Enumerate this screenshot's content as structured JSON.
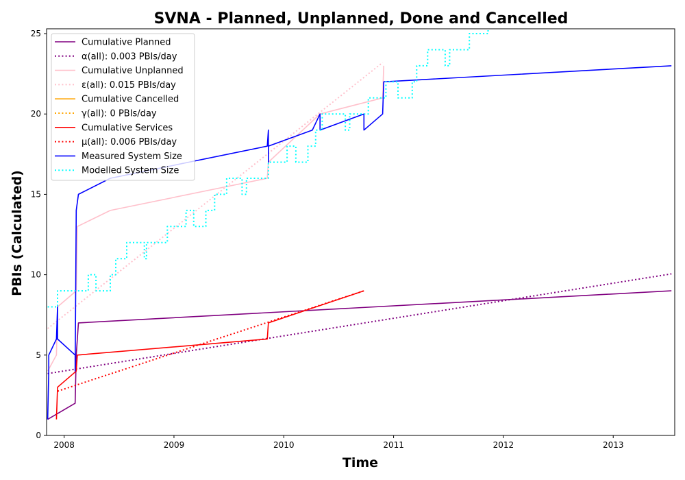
{
  "chart_data": {
    "type": "line",
    "title": "SVNA - Planned, Unplanned, Done  and Cancelled",
    "xlabel": "Time",
    "ylabel": "PBIs (Calculated)",
    "xlim": [
      2007.84,
      2013.56
    ],
    "ylim": [
      0,
      25.3
    ],
    "x_ticks": [
      2008,
      2009,
      2010,
      2011,
      2012,
      2013
    ],
    "y_ticks": [
      0,
      5,
      10,
      15,
      20,
      25
    ],
    "legend_position": "top-left",
    "series": [
      {
        "name": "Cumulative Planned",
        "color": "#800080",
        "style": "solid",
        "points": [
          [
            2007.85,
            1
          ],
          [
            2008.1,
            2
          ],
          [
            2008.11,
            5
          ],
          [
            2008.12,
            6
          ],
          [
            2008.13,
            7
          ],
          [
            2013.53,
            9
          ]
        ]
      },
      {
        "name": "α(all): 0.003 PBIs/day",
        "color": "#800080",
        "style": "dotted",
        "points": [
          [
            2007.85,
            3.85
          ],
          [
            2013.53,
            10.05
          ]
        ]
      },
      {
        "name": "Cumulative Unplanned",
        "color": "#ffc0cb",
        "style": "solid",
        "points": [
          [
            2007.85,
            4
          ],
          [
            2007.93,
            5
          ],
          [
            2007.94,
            8
          ],
          [
            2008.11,
            9
          ],
          [
            2008.12,
            13
          ],
          [
            2008.42,
            14
          ],
          [
            2009.85,
            16
          ],
          [
            2009.86,
            17
          ],
          [
            2010.33,
            20
          ],
          [
            2010.9,
            21
          ],
          [
            2010.91,
            23
          ]
        ]
      },
      {
        "name": "ε(all): 0.015 PBIs/day",
        "color": "#ffc0cb",
        "style": "dotted",
        "points": [
          [
            2007.85,
            6.65
          ],
          [
            2010.9,
            23.2
          ]
        ]
      },
      {
        "name": "Cumulative Cancelled",
        "color": "#ffa500",
        "style": "solid",
        "points": []
      },
      {
        "name": "γ(all): 0 PBIs/day",
        "color": "#ffa500",
        "style": "dotted",
        "points": []
      },
      {
        "name": "Cumulative Services",
        "color": "#ff0000",
        "style": "solid",
        "points": [
          [
            2007.93,
            1
          ],
          [
            2007.94,
            3
          ],
          [
            2008.11,
            4
          ],
          [
            2008.12,
            5
          ],
          [
            2009.85,
            6
          ],
          [
            2009.86,
            7
          ],
          [
            2010.73,
            9
          ]
        ]
      },
      {
        "name": "μ(all): 0.006 PBIs/day",
        "color": "#ff0000",
        "style": "dotted",
        "points": [
          [
            2007.94,
            2.75
          ],
          [
            2010.73,
            9
          ]
        ]
      },
      {
        "name": "Measured System Size",
        "color": "#0000ff",
        "style": "solid",
        "points": [
          [
            2007.85,
            1
          ],
          [
            2007.86,
            4
          ],
          [
            2007.86,
            5
          ],
          [
            2007.93,
            6
          ],
          [
            2007.94,
            8
          ],
          [
            2007.94,
            6
          ],
          [
            2008.1,
            5
          ],
          [
            2008.1,
            4
          ],
          [
            2008.11,
            14
          ],
          [
            2008.13,
            15
          ],
          [
            2008.42,
            16
          ],
          [
            2009.85,
            18
          ],
          [
            2009.86,
            19
          ],
          [
            2009.86,
            17
          ],
          [
            2009.86,
            18
          ],
          [
            2010.26,
            19
          ],
          [
            2010.33,
            20
          ],
          [
            2010.33,
            19
          ],
          [
            2010.73,
            20
          ],
          [
            2010.73,
            19
          ],
          [
            2010.9,
            20
          ],
          [
            2010.91,
            22
          ],
          [
            2013.53,
            23
          ]
        ]
      },
      {
        "name": "Modelled System Size",
        "color": "#00ffff",
        "style": "dotted",
        "step": true,
        "points": [
          [
            2007.85,
            8
          ],
          [
            2007.94,
            9
          ],
          [
            2008.04,
            9
          ],
          [
            2008.09,
            9
          ],
          [
            2008.22,
            10
          ],
          [
            2008.29,
            9
          ],
          [
            2008.42,
            10
          ],
          [
            2008.47,
            11
          ],
          [
            2008.57,
            12
          ],
          [
            2008.73,
            11
          ],
          [
            2008.75,
            12
          ],
          [
            2008.94,
            13
          ],
          [
            2009.11,
            14
          ],
          [
            2009.18,
            13
          ],
          [
            2009.29,
            14
          ],
          [
            2009.37,
            15
          ],
          [
            2009.48,
            16
          ],
          [
            2009.62,
            15
          ],
          [
            2009.66,
            16
          ],
          [
            2009.86,
            17
          ],
          [
            2010.03,
            18
          ],
          [
            2010.11,
            17
          ],
          [
            2010.22,
            18
          ],
          [
            2010.29,
            19
          ],
          [
            2010.35,
            20
          ],
          [
            2010.56,
            19
          ],
          [
            2010.6,
            20
          ],
          [
            2010.77,
            21
          ],
          [
            2010.93,
            22
          ],
          [
            2011.04,
            21
          ],
          [
            2011.17,
            22
          ],
          [
            2011.21,
            23
          ],
          [
            2011.31,
            24
          ],
          [
            2011.47,
            23
          ],
          [
            2011.51,
            24
          ],
          [
            2011.69,
            25
          ],
          [
            2011.86,
            25.3
          ]
        ]
      }
    ]
  }
}
